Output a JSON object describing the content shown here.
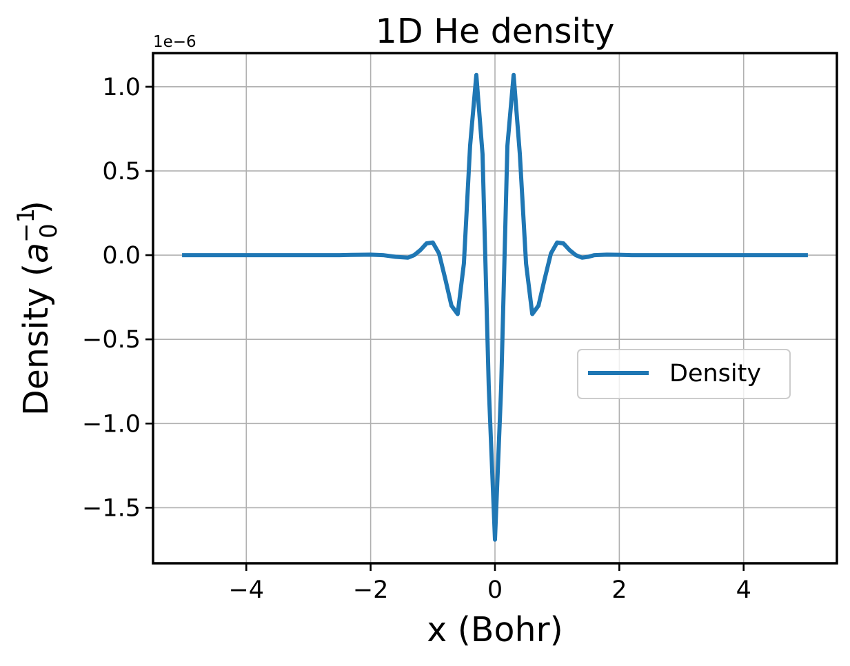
{
  "chart_data": {
    "type": "line",
    "title": "1D He density",
    "xlabel": "x (Bohr)",
    "ylabel": {
      "prefix": "Density (",
      "base": "a",
      "subscript": "0",
      "superscript": "−1",
      "suffix": ")"
    },
    "y_offset_text": "1e−6",
    "y_scale_factor": 1e-06,
    "xlim": [
      -5.5,
      5.5
    ],
    "ylim": [
      -1.83,
      1.2
    ],
    "xticks": [
      {
        "value": -4,
        "label": "−4"
      },
      {
        "value": -2,
        "label": "−2"
      },
      {
        "value": 0,
        "label": "0"
      },
      {
        "value": 2,
        "label": "2"
      },
      {
        "value": 4,
        "label": "4"
      }
    ],
    "yticks": [
      {
        "value": 1.0,
        "label": "1.0"
      },
      {
        "value": 0.5,
        "label": "0.5"
      },
      {
        "value": 0.0,
        "label": "0.0"
      },
      {
        "value": -0.5,
        "label": "−0.5"
      },
      {
        "value": -1.0,
        "label": "−1.0"
      },
      {
        "value": -1.5,
        "label": "−1.5"
      }
    ],
    "grid": true,
    "legend": {
      "position": "center-right"
    },
    "series": [
      {
        "name": "Density",
        "color": "#1f77b4",
        "x": [
          -5.0,
          -4.5,
          -4.0,
          -3.5,
          -3.0,
          -2.5,
          -2.2,
          -2.0,
          -1.8,
          -1.6,
          -1.4,
          -1.3,
          -1.2,
          -1.1,
          -1.0,
          -0.9,
          -0.8,
          -0.7,
          -0.6,
          -0.5,
          -0.4,
          -0.3,
          -0.2,
          -0.1,
          0.0,
          0.1,
          0.2,
          0.3,
          0.4,
          0.5,
          0.6,
          0.7,
          0.8,
          0.9,
          1.0,
          1.1,
          1.2,
          1.3,
          1.4,
          1.5,
          1.6,
          1.8,
          2.0,
          2.2,
          2.5,
          3.0,
          3.5,
          4.0,
          4.5,
          5.0
        ],
        "values": [
          0.0,
          0.0,
          0.0,
          0.0,
          0.0,
          0.0,
          0.002,
          0.003,
          0.0,
          -0.01,
          -0.015,
          0.0,
          0.03,
          0.07,
          0.075,
          0.01,
          -0.14,
          -0.3,
          -0.35,
          -0.05,
          0.65,
          1.07,
          0.6,
          -0.78,
          -1.69,
          -0.78,
          0.65,
          1.07,
          0.6,
          -0.05,
          -0.35,
          -0.3,
          -0.14,
          0.01,
          0.075,
          0.07,
          0.03,
          0.0,
          -0.015,
          -0.01,
          0.0,
          0.003,
          0.002,
          0.0,
          0.0,
          0.0,
          0.0,
          0.0,
          0.0,
          0.0
        ]
      }
    ]
  }
}
